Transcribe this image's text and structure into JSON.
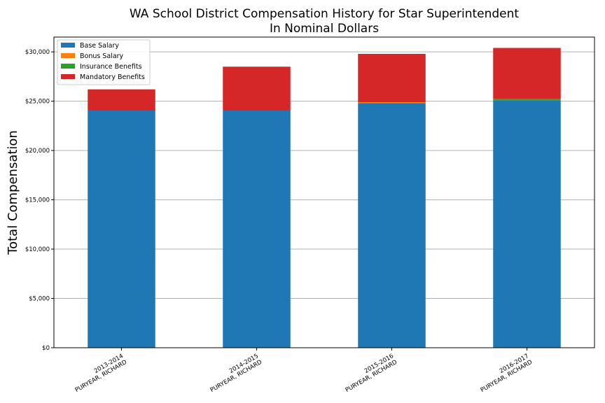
{
  "chart_data": {
    "type": "bar",
    "stacked": true,
    "title": "WA School District Compensation History for Star Superintendent",
    "subtitle": "In Nominal Dollars",
    "xlabel": "",
    "ylabel": "Total Compensation",
    "ylim": [
      0,
      31500
    ],
    "yticks": [
      "$0",
      "$5,000",
      "$10,000",
      "$15,000",
      "$20,000",
      "$25,000",
      "$30,000"
    ],
    "ytick_values": [
      0,
      5000,
      10000,
      15000,
      20000,
      25000,
      30000
    ],
    "grid": "horizontal",
    "legend_position": "top-left",
    "categories": [
      [
        "2013-2014",
        "PURYEAR, RICHARD"
      ],
      [
        "2014-2015",
        "PURYEAR, RICHARD"
      ],
      [
        "2015-2016",
        "PURYEAR, RICHARD"
      ],
      [
        "2016-2017",
        "PURYEAR, RICHARD"
      ]
    ],
    "series": [
      {
        "name": "Base Salary",
        "color": "#1f77b4",
        "values": [
          24050,
          24050,
          24800,
          25100
        ]
      },
      {
        "name": "Bonus Salary",
        "color": "#ff7f0e",
        "values": [
          0,
          0,
          100,
          0
        ]
      },
      {
        "name": "Insurance Benefits",
        "color": "#2ca02c",
        "values": [
          0,
          0,
          0,
          150
        ]
      },
      {
        "name": "Mandatory Benefits",
        "color": "#d62728",
        "values": [
          2150,
          4450,
          4900,
          5150
        ]
      }
    ]
  }
}
